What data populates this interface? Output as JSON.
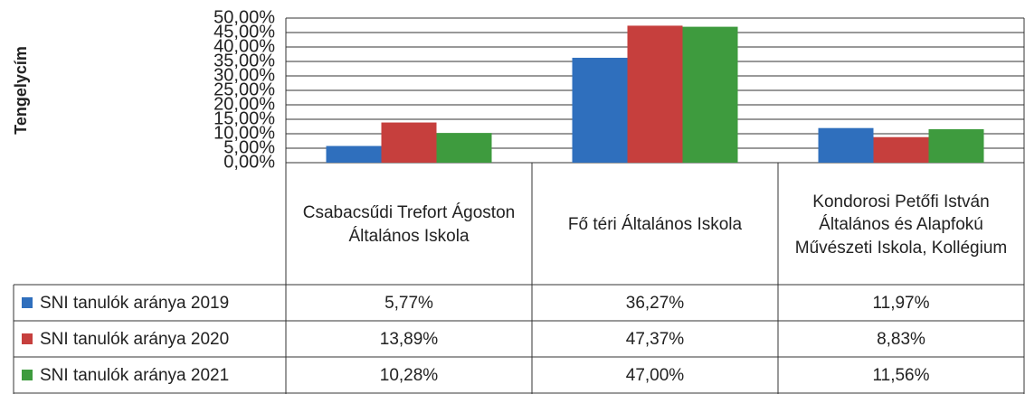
{
  "chart_data": {
    "type": "bar",
    "y_label": "Tengelycím",
    "categories": [
      "Csabacsűdi Trefort Ágoston Általános Iskola",
      "Fő téri Általános Iskola",
      "Kondorosi Petőfi István Általános és Alapfokú Művészeti Iskola, Kollégium"
    ],
    "series": [
      {
        "name": "SNI tanulók aránya 2019",
        "color": "#2f6fbd",
        "values": [
          5.77,
          36.27,
          11.97
        ],
        "value_labels": [
          "5,77%",
          "36,27%",
          "11,97%"
        ]
      },
      {
        "name": "SNI tanulók aránya 2020",
        "color": "#c63f3d",
        "values": [
          13.89,
          47.37,
          8.83
        ],
        "value_labels": [
          "13,89%",
          "47,37%",
          "8,83%"
        ]
      },
      {
        "name": "SNI tanulók aránya 2021",
        "color": "#3e9b3e",
        "values": [
          10.28,
          47.0,
          11.56
        ],
        "value_labels": [
          "10,28%",
          "47,00%",
          "11,56%"
        ]
      }
    ],
    "ylim": [
      0,
      50
    ],
    "yticks": [
      {
        "value": 0,
        "label": "0,00%"
      },
      {
        "value": 5,
        "label": "5,00%"
      },
      {
        "value": 10,
        "label": "10,00%"
      },
      {
        "value": 15,
        "label": "15,00%"
      },
      {
        "value": 20,
        "label": "20,00%"
      },
      {
        "value": 25,
        "label": "25,00%"
      },
      {
        "value": 30,
        "label": "30,00%"
      },
      {
        "value": 35,
        "label": "35,00%"
      },
      {
        "value": 40,
        "label": "40,00%"
      },
      {
        "value": 45,
        "label": "45,00%"
      },
      {
        "value": 50,
        "label": "50,00%"
      }
    ],
    "grid": true,
    "legend": "table"
  }
}
